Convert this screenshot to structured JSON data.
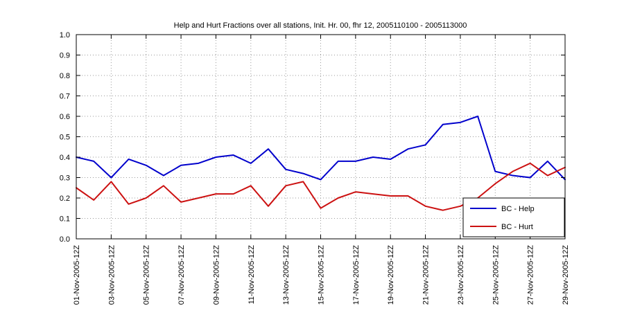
{
  "figure": {
    "background": "#ffffff"
  },
  "chart_data": {
    "type": "line",
    "title": "Help and Hurt Fractions over all stations, Init. Hr. 00, fhr 12, 2005110100 - 2005113000",
    "xlabel": "",
    "ylabel": "",
    "ylim": [
      0.0,
      1.0
    ],
    "yticks": [
      0.0,
      0.1,
      0.2,
      0.3,
      0.4,
      0.5,
      0.6,
      0.7,
      0.8,
      0.9,
      1.0
    ],
    "n_points": 29,
    "x_tick_indices": [
      0,
      2,
      4,
      6,
      8,
      10,
      12,
      14,
      16,
      18,
      20,
      22,
      24,
      26,
      28
    ],
    "x_tick_labels": [
      "01-Nov-2005-12Z",
      "03-Nov-2005-12Z",
      "05-Nov-2005-12Z",
      "07-Nov-2005-12Z",
      "09-Nov-2005-12Z",
      "11-Nov-2005-12Z",
      "13-Nov-2005-12Z",
      "15-Nov-2005-12Z",
      "17-Nov-2005-12Z",
      "19-Nov-2005-12Z",
      "21-Nov-2005-12Z",
      "23-Nov-2005-12Z",
      "25-Nov-2005-12Z",
      "27-Nov-2005-12Z",
      "29-Nov-2005-12Z"
    ],
    "grid": true,
    "legend_position": "southeast",
    "series": [
      {
        "name": "BC - Help",
        "color": "#0000CC",
        "values": [
          0.4,
          0.38,
          0.3,
          0.39,
          0.36,
          0.31,
          0.36,
          0.37,
          0.4,
          0.41,
          0.37,
          0.44,
          0.34,
          0.32,
          0.29,
          0.38,
          0.38,
          0.4,
          0.39,
          0.44,
          0.46,
          0.56,
          0.57,
          0.6,
          0.33,
          0.31,
          0.3,
          0.38,
          0.29
        ]
      },
      {
        "name": "BC - Hurt",
        "color": "#CC1111",
        "values": [
          0.25,
          0.19,
          0.28,
          0.17,
          0.2,
          0.26,
          0.18,
          0.2,
          0.22,
          0.22,
          0.26,
          0.16,
          0.26,
          0.28,
          0.15,
          0.2,
          0.23,
          0.22,
          0.21,
          0.21,
          0.16,
          0.14,
          0.16,
          0.2,
          0.27,
          0.33,
          0.37,
          0.31,
          0.35
        ]
      }
    ]
  }
}
